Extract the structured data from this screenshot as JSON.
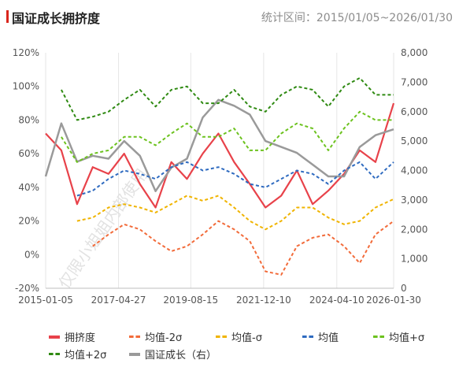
{
  "header": {
    "title": "国证成长拥挤度",
    "period_label": "统计区间：2015/01/05~2026/01/30"
  },
  "watermark": "仅限小姐姐内部使用",
  "colors": {
    "crowding": "#e8424a",
    "mean_minus_2sd": "#f26b3a",
    "mean_minus_1sd": "#f0b400",
    "mean": "#2f6bc0",
    "mean_plus_1sd": "#6cc21e",
    "mean_plus_2sd": "#2f8a12",
    "index_right": "#9a9a9a",
    "axis_text": "#555555",
    "grid": "#e6e6e6"
  },
  "legend": [
    {
      "label": "拥挤度",
      "key": "crowding",
      "style": "solid"
    },
    {
      "label": "均值-2σ",
      "key": "mean_minus_2sd",
      "style": "dash"
    },
    {
      "label": "均值-σ",
      "key": "mean_minus_1sd",
      "style": "dash"
    },
    {
      "label": "均值",
      "key": "mean",
      "style": "dash"
    },
    {
      "label": "均值+σ",
      "key": "mean_plus_1sd",
      "style": "dash"
    },
    {
      "label": "均值+2σ",
      "key": "mean_plus_2sd",
      "style": "dash"
    },
    {
      "label": "国证成长（右）",
      "key": "index_right",
      "style": "solid"
    }
  ],
  "chart_data": {
    "type": "line",
    "x_tick_labels": [
      "2015-01-05",
      "2017-04-27",
      "2019-08-15",
      "2021-12-10",
      "2024-04-10",
      "2026-01-30"
    ],
    "x_range": [
      "2015-01-05",
      "2026-01-30"
    ],
    "y_left": {
      "ticks": [
        "-20%",
        "0%",
        "20%",
        "40%",
        "60%",
        "80%",
        "100%",
        "120%"
      ],
      "range": [
        -20,
        120
      ],
      "unit": "%"
    },
    "y_right": {
      "ticks": [
        "0",
        "1,000",
        "2,000",
        "3,000",
        "4,000",
        "5,000",
        "6,000",
        "7,000",
        "8,000"
      ],
      "range": [
        0,
        8000
      ]
    },
    "grid": "vertical",
    "legend_position": "bottom",
    "x": [
      2015.0,
      2015.5,
      2016.0,
      2016.5,
      2017.0,
      2017.5,
      2018.0,
      2018.5,
      2019.0,
      2019.5,
      2020.0,
      2020.5,
      2021.0,
      2021.5,
      2022.0,
      2022.5,
      2023.0,
      2023.5,
      2024.0,
      2024.5,
      2025.0,
      2025.5,
      2026.08
    ],
    "series": [
      {
        "name": "拥挤度",
        "key": "crowding",
        "axis": "left",
        "style": "solid",
        "values": [
          72,
          62,
          30,
          52,
          48,
          60,
          42,
          28,
          55,
          45,
          60,
          72,
          55,
          42,
          28,
          35,
          50,
          30,
          38,
          48,
          62,
          55,
          90
        ]
      },
      {
        "name": "均值-2σ",
        "key": "mean_minus_2sd",
        "axis": "left",
        "style": "dash",
        "values": [
          null,
          null,
          null,
          5,
          12,
          18,
          15,
          8,
          2,
          5,
          12,
          20,
          15,
          8,
          -10,
          -12,
          5,
          10,
          12,
          5,
          -5,
          12,
          20
        ]
      },
      {
        "name": "均值-σ",
        "key": "mean_minus_1sd",
        "axis": "left",
        "style": "dash",
        "values": [
          null,
          null,
          20,
          22,
          28,
          30,
          28,
          25,
          30,
          35,
          32,
          35,
          28,
          20,
          15,
          20,
          28,
          28,
          22,
          18,
          20,
          28,
          33
        ]
      },
      {
        "name": "均值",
        "key": "mean",
        "axis": "left",
        "style": "dash",
        "values": [
          null,
          null,
          35,
          38,
          45,
          50,
          48,
          45,
          52,
          55,
          50,
          52,
          48,
          42,
          40,
          45,
          50,
          48,
          42,
          50,
          55,
          45,
          55
        ]
      },
      {
        "name": "均值+σ",
        "key": "mean_plus_1sd",
        "axis": "left",
        "style": "dash",
        "values": [
          null,
          70,
          55,
          60,
          62,
          70,
          70,
          65,
          72,
          78,
          70,
          70,
          75,
          62,
          62,
          72,
          78,
          75,
          62,
          75,
          85,
          80,
          80
        ]
      },
      {
        "name": "均值+2σ",
        "key": "mean_plus_2sd",
        "axis": "left",
        "style": "dash",
        "values": [
          null,
          98,
          80,
          82,
          85,
          92,
          98,
          88,
          98,
          100,
          90,
          90,
          98,
          88,
          85,
          95,
          100,
          98,
          88,
          100,
          105,
          95,
          95
        ]
      },
      {
        "name": "国证成长（右）",
        "key": "index_right",
        "axis": "right",
        "style": "solid",
        "values": [
          3800,
          5600,
          4300,
          4500,
          4400,
          5000,
          4500,
          3300,
          4100,
          4400,
          5800,
          6400,
          6200,
          5900,
          5000,
          4800,
          4600,
          4200,
          3800,
          3800,
          4800,
          5200,
          5400
        ]
      }
    ]
  }
}
